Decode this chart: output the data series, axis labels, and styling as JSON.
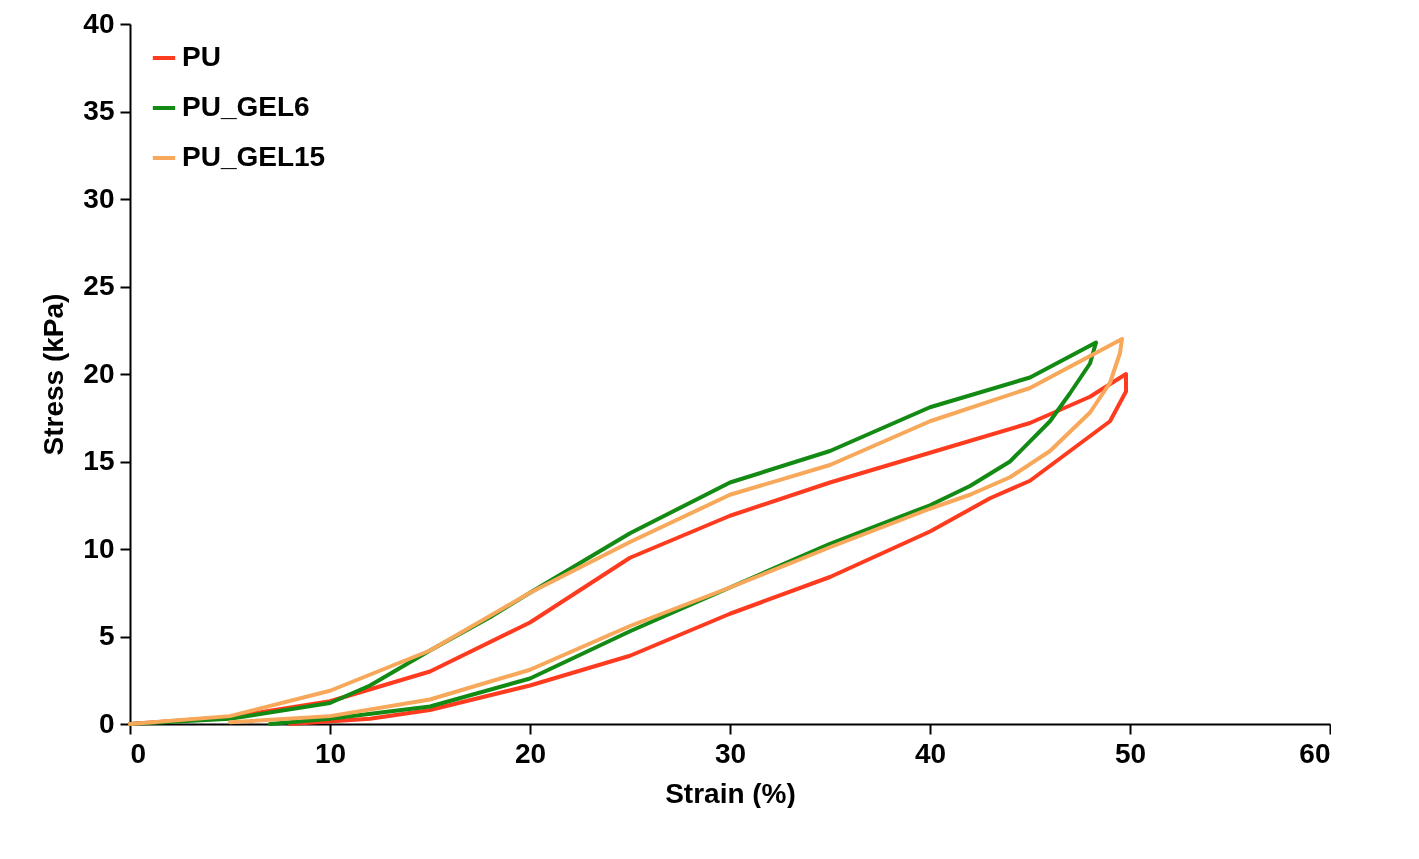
{
  "chart_data": {
    "type": "line",
    "xlabel": "Strain (%)",
    "ylabel": "Stress (kPa)",
    "xlim": [
      0,
      60
    ],
    "ylim": [
      0,
      40
    ],
    "xticks": [
      0,
      10,
      20,
      30,
      40,
      50,
      60
    ],
    "yticks": [
      0,
      5,
      10,
      15,
      20,
      25,
      30,
      35,
      40
    ],
    "grid": false,
    "legend": "top left",
    "marker": "none",
    "line_style": "solid",
    "series": [
      {
        "name": "PU",
        "color": "#ff3b1f",
        "x": [
          0,
          5,
          10,
          15,
          20,
          25,
          30,
          35,
          40,
          45,
          48,
          49.8,
          49.8,
          49,
          47,
          45,
          43,
          40,
          35,
          30,
          25,
          20,
          15,
          12,
          8
        ],
        "values": [
          0,
          0.4,
          1.3,
          3.0,
          5.8,
          9.5,
          11.9,
          13.8,
          15.5,
          17.2,
          18.7,
          20,
          19,
          17.3,
          15.6,
          13.9,
          12.9,
          11,
          8.4,
          6.3,
          3.9,
          2.2,
          0.8,
          0.3,
          0
        ]
      },
      {
        "name": "PU_GEL6",
        "color": "#138a13",
        "x": [
          0,
          5,
          10,
          12,
          15,
          18,
          20,
          25,
          30,
          35,
          40,
          45,
          48.3,
          48,
          47,
          46,
          44,
          42,
          40,
          35,
          30,
          25,
          20,
          15,
          10,
          7
        ],
        "values": [
          0,
          0.3,
          1.2,
          2.2,
          4.2,
          6.1,
          7.5,
          10.9,
          13.8,
          15.6,
          18.1,
          19.8,
          21.8,
          20.6,
          18.9,
          17.3,
          15.0,
          13.6,
          12.5,
          10.3,
          7.8,
          5.3,
          2.6,
          1.0,
          0.3,
          0
        ]
      },
      {
        "name": "PU_GEL15",
        "color": "#f7a85a",
        "x": [
          0,
          5,
          10,
          15,
          20,
          25,
          30,
          35,
          40,
          45,
          49.6,
          49.5,
          49,
          48,
          46,
          44,
          42,
          40,
          35,
          30,
          25,
          20,
          15,
          10,
          5
        ],
        "values": [
          0,
          0.45,
          1.9,
          4.2,
          7.5,
          10.4,
          13.1,
          14.8,
          17.3,
          19.2,
          22.0,
          21.2,
          19.5,
          17.8,
          15.6,
          14.1,
          13.1,
          12.3,
          10.1,
          7.8,
          5.6,
          3.1,
          1.4,
          0.45,
          0.1
        ]
      }
    ]
  }
}
